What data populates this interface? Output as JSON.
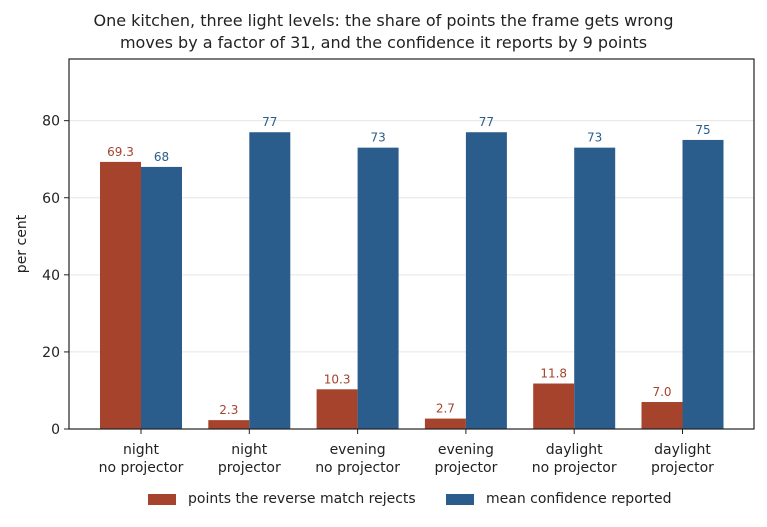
{
  "colors": {
    "rejects": "#a5432c",
    "confidence": "#2a5d8c",
    "axis": "#222222",
    "grid": "#e6e6e6"
  },
  "chart_data": {
    "type": "bar",
    "title_lines": [
      "One kitchen, three light levels: the share of points the frame gets wrong",
      "moves by a factor of 31, and the confidence it reports by 9 points"
    ],
    "ylabel": "per cent",
    "xlabel": "",
    "ylim": [
      0,
      96
    ],
    "yticks": [
      0,
      20,
      40,
      60,
      80
    ],
    "grid": "y",
    "legend_position": "bottom",
    "categories": [
      [
        "night",
        "no projector"
      ],
      [
        "night",
        "projector"
      ],
      [
        "evening",
        "no projector"
      ],
      [
        "evening",
        "projector"
      ],
      [
        "daylight",
        "no projector"
      ],
      [
        "daylight",
        "projector"
      ]
    ],
    "series": [
      {
        "name": "points the reverse match rejects",
        "values": [
          69.3,
          2.3,
          10.3,
          2.7,
          11.8,
          7.0
        ],
        "labels": [
          "69.3",
          "2.3",
          "10.3",
          "2.7",
          "11.8",
          "7.0"
        ]
      },
      {
        "name": "mean confidence reported",
        "values": [
          68,
          77,
          73,
          77,
          73,
          75
        ],
        "labels": [
          "68",
          "77",
          "73",
          "77",
          "73",
          "75"
        ]
      }
    ]
  }
}
